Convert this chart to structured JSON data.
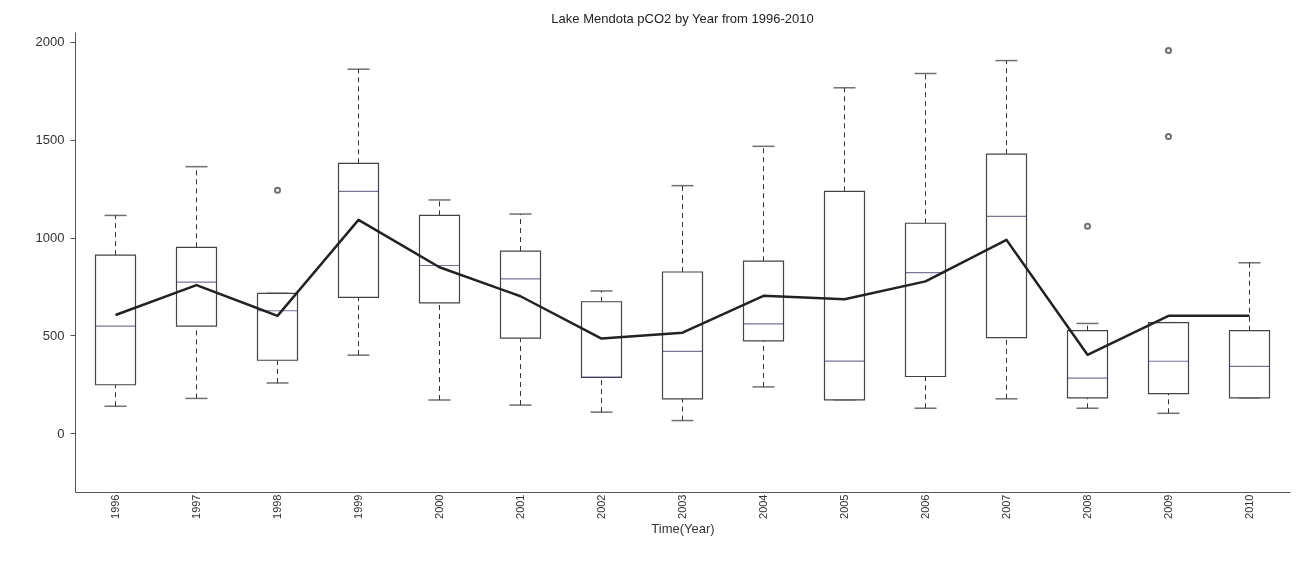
{
  "chart_data": {
    "type": "box",
    "title": "Lake Mendota pCO2 by Year from 1996-2010",
    "xlabel": "Time(Year)",
    "categories": [
      "1996",
      "1997",
      "1998",
      "1999",
      "2000",
      "2001",
      "2002",
      "2003",
      "2004",
      "2005",
      "2006",
      "2007",
      "2008",
      "2009",
      "2010"
    ],
    "boxes": [
      {
        "low": 138,
        "q1": 248,
        "median": 547,
        "q3": 910,
        "high": 1113
      },
      {
        "low": 178,
        "q1": 547,
        "median": 772,
        "q3": 950,
        "high": 1362
      },
      {
        "low": 257,
        "q1": 373,
        "median": 626,
        "q3": 715,
        "high": 715,
        "outliers": [
          1241
        ]
      },
      {
        "low": 399,
        "q1": 694,
        "median": 1236,
        "q3": 1379,
        "high": 1860
      },
      {
        "low": 170,
        "q1": 666,
        "median": 857,
        "q3": 1113,
        "high": 1192
      },
      {
        "low": 144,
        "q1": 486,
        "median": 789,
        "q3": 931,
        "high": 1120
      },
      {
        "low": 108,
        "q1": 286,
        "median": 286,
        "q3": 672,
        "high": 727
      },
      {
        "low": 65,
        "q1": 176,
        "median": 418,
        "q3": 824,
        "high": 1265
      },
      {
        "low": 237,
        "q1": 472,
        "median": 559,
        "q3": 879,
        "high": 1466
      },
      {
        "low": 171,
        "q1": 171,
        "median": 369,
        "q3": 1236,
        "high": 1765
      },
      {
        "low": 128,
        "q1": 290,
        "median": 821,
        "q3": 1073,
        "high": 1838
      },
      {
        "low": 176,
        "q1": 489,
        "median": 1108,
        "q3": 1426,
        "high": 1904
      },
      {
        "low": 128,
        "q1": 181,
        "median": 282,
        "q3": 524,
        "high": 561,
        "outliers": [
          1058
        ]
      },
      {
        "low": 102,
        "q1": 203,
        "median": 368,
        "q3": 565,
        "high": 565,
        "outliers": [
          1516,
          1955
        ]
      },
      {
        "low": 181,
        "q1": 181,
        "median": 342,
        "q3": 524,
        "high": 871
      }
    ],
    "series": [
      {
        "type": "line",
        "color": "#222222",
        "values": [
          604,
          757,
          600,
          1090,
          848,
          700,
          484,
          514,
          702,
          685,
          776,
          988,
          401,
          600,
          600
        ]
      }
    ],
    "ylim": [
      -300,
      2050
    ],
    "yticks": [
      0,
      500,
      1000,
      1500,
      2000
    ]
  }
}
